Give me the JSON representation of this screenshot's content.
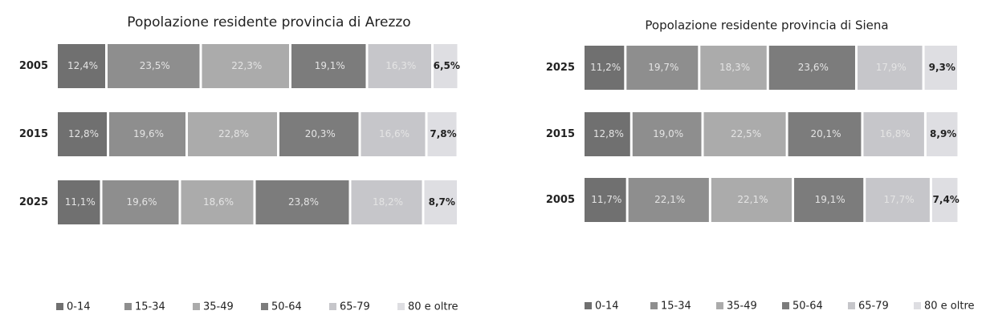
{
  "chart_data": [
    {
      "type": "stacked-bar-horizontal",
      "title": "Popolazione residente provincia di Arezzo",
      "categories": [
        "2005",
        "2015",
        "2025"
      ],
      "xlim": [
        0,
        100
      ],
      "legend": "bottom",
      "series": [
        {
          "name": "0-14",
          "color": "#707070",
          "values": [
            12.4,
            12.8,
            11.1
          ],
          "value_labels": [
            "12,4%",
            "12,8%",
            "11,1%"
          ]
        },
        {
          "name": "15-34",
          "color": "#8e8e8e",
          "values": [
            23.5,
            19.6,
            19.6
          ],
          "value_labels": [
            "23,5%",
            "19,6%",
            "19,6%"
          ]
        },
        {
          "name": "35-49",
          "color": "#ababab",
          "values": [
            22.3,
            22.8,
            18.6
          ],
          "value_labels": [
            "22,3%",
            "22,8%",
            "18,6%"
          ]
        },
        {
          "name": "50-64",
          "color": "#7c7c7c",
          "values": [
            19.1,
            20.3,
            23.8
          ],
          "value_labels": [
            "19,1%",
            "20,3%",
            "23,8%"
          ]
        },
        {
          "name": "65-79",
          "color": "#c6c6ca",
          "values": [
            16.3,
            16.6,
            18.2
          ],
          "value_labels": [
            "16,3%",
            "16,6%",
            "18,2%"
          ]
        },
        {
          "name": "80 e oltre",
          "color": "#dedee2",
          "values": [
            6.5,
            7.8,
            8.7
          ],
          "value_labels": [
            "6,5%",
            "7,8%",
            "8,7%"
          ]
        }
      ]
    },
    {
      "type": "stacked-bar-horizontal",
      "title": "Popolazione residente provincia di Siena",
      "categories": [
        "2025",
        "2015",
        "2005"
      ],
      "xlim": [
        0,
        100
      ],
      "legend": "bottom",
      "series": [
        {
          "name": "0-14",
          "color": "#707070",
          "values": [
            11.2,
            12.8,
            11.7
          ],
          "value_labels": [
            "11,2%",
            "12,8%",
            "11,7%"
          ]
        },
        {
          "name": "15-34",
          "color": "#8e8e8e",
          "values": [
            19.7,
            19.0,
            22.1
          ],
          "value_labels": [
            "19,7%",
            "19,0%",
            "22,1%"
          ]
        },
        {
          "name": "35-49",
          "color": "#ababab",
          "values": [
            18.3,
            22.5,
            22.1
          ],
          "value_labels": [
            "18,3%",
            "22,5%",
            "22,1%"
          ]
        },
        {
          "name": "50-64",
          "color": "#7c7c7c",
          "values": [
            23.6,
            20.1,
            19.1
          ],
          "value_labels": [
            "23,6%",
            "20,1%",
            "19,1%"
          ]
        },
        {
          "name": "65-79",
          "color": "#c6c6ca",
          "values": [
            17.9,
            16.8,
            17.7
          ],
          "value_labels": [
            "17,9%",
            "16,8%",
            "17,7%"
          ]
        },
        {
          "name": "80 e oltre",
          "color": "#dedee2",
          "values": [
            9.3,
            8.9,
            7.4
          ],
          "value_labels": [
            "9,3%",
            "8,9%",
            "7,4%"
          ]
        }
      ]
    }
  ]
}
